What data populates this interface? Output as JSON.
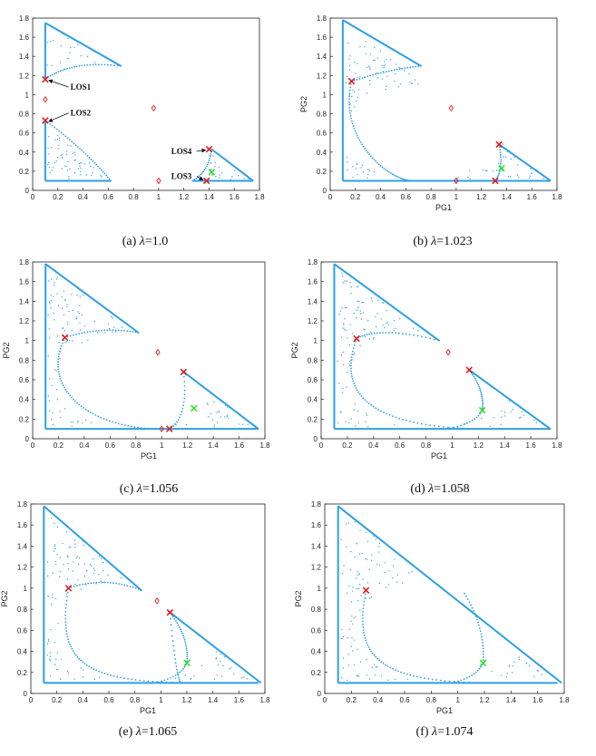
{
  "colors": {
    "boundary": "#2e9fe6",
    "interior": "#3aa3e8",
    "red_marker": "#e41a1c",
    "green_marker": "#33dd33",
    "diamond": "#e41a1c",
    "axis": "#222222"
  },
  "chart_data": [
    {
      "type": "scatter",
      "caption_prefix": "(a) ",
      "caption_value": "=1.0",
      "lambda": "1.0",
      "xlabel": "",
      "ylabel": "",
      "xlim": [
        0,
        1.8
      ],
      "ylim": [
        0,
        1.8
      ],
      "xticks": [
        "0",
        "0.2",
        "0.4",
        "0.6",
        "0.8",
        "1",
        "1.2",
        "1.4",
        "1.6",
        "1.8"
      ],
      "yticks": [
        "0",
        "0.2",
        "0.4",
        "0.6",
        "0.8",
        "1",
        "1.2",
        "1.4",
        "1.6",
        "1.8"
      ],
      "regions": [
        {
          "kind": "upper",
          "x_ref": 0.1,
          "top": 1.75,
          "bottom": 1.15,
          "tip": [
            0.7,
            1.3
          ],
          "curve": "concave"
        },
        {
          "kind": "lower",
          "x_ref": 0.1,
          "top": 0.73,
          "bottom": 0.1,
          "right": 0.62,
          "curve": "concave"
        },
        {
          "kind": "small",
          "left_x": 1.27,
          "top": [
            1.42,
            0.43
          ],
          "bottom": 0.1,
          "right": 1.75
        }
      ],
      "red_x": [
        [
          0.1,
          1.16
        ],
        [
          0.1,
          0.73
        ],
        [
          1.4,
          0.43
        ],
        [
          1.38,
          0.1
        ]
      ],
      "green_x": [
        [
          1.42,
          0.19
        ]
      ],
      "diamonds": [
        [
          0.1,
          0.95
        ],
        [
          0.96,
          0.86
        ],
        [
          1.0,
          0.1
        ]
      ],
      "annotations": [
        {
          "text": "LOS1",
          "x": 0.3,
          "y": 1.05
        },
        {
          "text": "LOS2",
          "x": 0.3,
          "y": 0.78
        },
        {
          "text": "LOS4",
          "x": 1.1,
          "y": 0.38
        },
        {
          "text": "LOS3",
          "x": 1.1,
          "y": 0.12
        }
      ]
    },
    {
      "type": "scatter",
      "caption_prefix": "(b) ",
      "caption_value": "=1.023",
      "lambda": "1.023",
      "xlabel": "PG1",
      "ylabel": "PG2",
      "xlim": [
        0,
        1.8
      ],
      "ylim": [
        0,
        1.8
      ],
      "xticks": [
        "0",
        "0.2",
        "0.4",
        "0.6",
        "0.8",
        "1",
        "1.2",
        "1.4",
        "1.6",
        "1.8"
      ],
      "yticks": [
        "0",
        "0.2",
        "0.4",
        "0.6",
        "0.8",
        "1",
        "1.2",
        "1.4",
        "1.6",
        "1.8"
      ],
      "red_x": [
        [
          0.17,
          1.14
        ],
        [
          1.34,
          0.48
        ],
        [
          1.31,
          0.1
        ]
      ],
      "green_x": [
        [
          1.36,
          0.23
        ]
      ],
      "diamonds": [
        [
          0.96,
          0.86
        ],
        [
          1.0,
          0.1
        ]
      ]
    },
    {
      "type": "scatter",
      "caption_prefix": "(c) ",
      "caption_value": "=1.056",
      "lambda": "1.056",
      "xlabel": "PG1",
      "ylabel": "PG2",
      "xlim": [
        0,
        1.8
      ],
      "ylim": [
        0,
        1.8
      ],
      "xticks": [
        "0",
        "0.2",
        "0.4",
        "0.6",
        "0.8",
        "1",
        "1.2",
        "1.4",
        "1.6",
        "1.8"
      ],
      "yticks": [
        "0",
        "0.2",
        "0.4",
        "0.6",
        "0.8",
        "1",
        "1.2",
        "1.4",
        "1.6",
        "1.8"
      ],
      "red_x": [
        [
          0.25,
          1.03
        ],
        [
          1.17,
          0.68
        ],
        [
          1.06,
          0.1
        ]
      ],
      "green_x": [
        [
          1.25,
          0.31
        ]
      ],
      "diamonds": [
        [
          0.97,
          0.88
        ],
        [
          1.0,
          0.1
        ]
      ]
    },
    {
      "type": "scatter",
      "caption_prefix": "(d) ",
      "caption_value": "=1.058",
      "lambda": "1.058",
      "xlabel": "PG1",
      "ylabel": "PG2",
      "xlim": [
        0,
        1.8
      ],
      "ylim": [
        0,
        1.8
      ],
      "xticks": [
        "0",
        "0.2",
        "0.4",
        "0.6",
        "0.8",
        "1",
        "1.2",
        "1.4",
        "1.6",
        "1.8"
      ],
      "yticks": [
        "0",
        "0.2",
        "0.4",
        "0.6",
        "0.8",
        "1",
        "1.2",
        "1.4",
        "1.6",
        "1.8"
      ],
      "red_x": [
        [
          0.27,
          1.02
        ],
        [
          1.13,
          0.7
        ]
      ],
      "green_x": [
        [
          1.23,
          0.29
        ]
      ],
      "diamonds": [
        [
          0.97,
          0.88
        ]
      ]
    },
    {
      "type": "scatter",
      "caption_prefix": "(e) ",
      "caption_value": "=1.065",
      "lambda": "1.065",
      "xlabel": "PG1",
      "ylabel": "PG2",
      "xlim": [
        0,
        1.8
      ],
      "ylim": [
        0,
        1.8
      ],
      "xticks": [
        "0",
        "0.2",
        "0.4",
        "0.6",
        "0.8",
        "1",
        "1.2",
        "1.4",
        "1.6",
        "1.8"
      ],
      "yticks": [
        "0",
        "0.2",
        "0.4",
        "0.6",
        "0.8",
        "1",
        "1.2",
        "1.4",
        "1.6",
        "1.8"
      ],
      "red_x": [
        [
          0.29,
          1.0
        ],
        [
          1.07,
          0.77
        ]
      ],
      "green_x": [
        [
          1.2,
          0.29
        ]
      ],
      "diamonds": [
        [
          0.97,
          0.88
        ]
      ]
    },
    {
      "type": "scatter",
      "caption_prefix": "(f) ",
      "caption_value": "=1.074",
      "lambda": "1.074",
      "xlabel": "PG1",
      "ylabel": "PG2",
      "xlim": [
        0,
        1.8
      ],
      "ylim": [
        0,
        1.8
      ],
      "xticks": [
        "0",
        "0.2",
        "0.4",
        "0.6",
        "0.8",
        "1",
        "1.2",
        "1.4",
        "1.6",
        "1.8"
      ],
      "yticks": [
        "0",
        "0.2",
        "0.4",
        "0.6",
        "0.8",
        "1",
        "1.2",
        "1.4",
        "1.6",
        "1.8"
      ],
      "red_x": [
        [
          0.31,
          0.98
        ]
      ],
      "green_x": [
        [
          1.19,
          0.29
        ]
      ],
      "diamonds": []
    }
  ]
}
